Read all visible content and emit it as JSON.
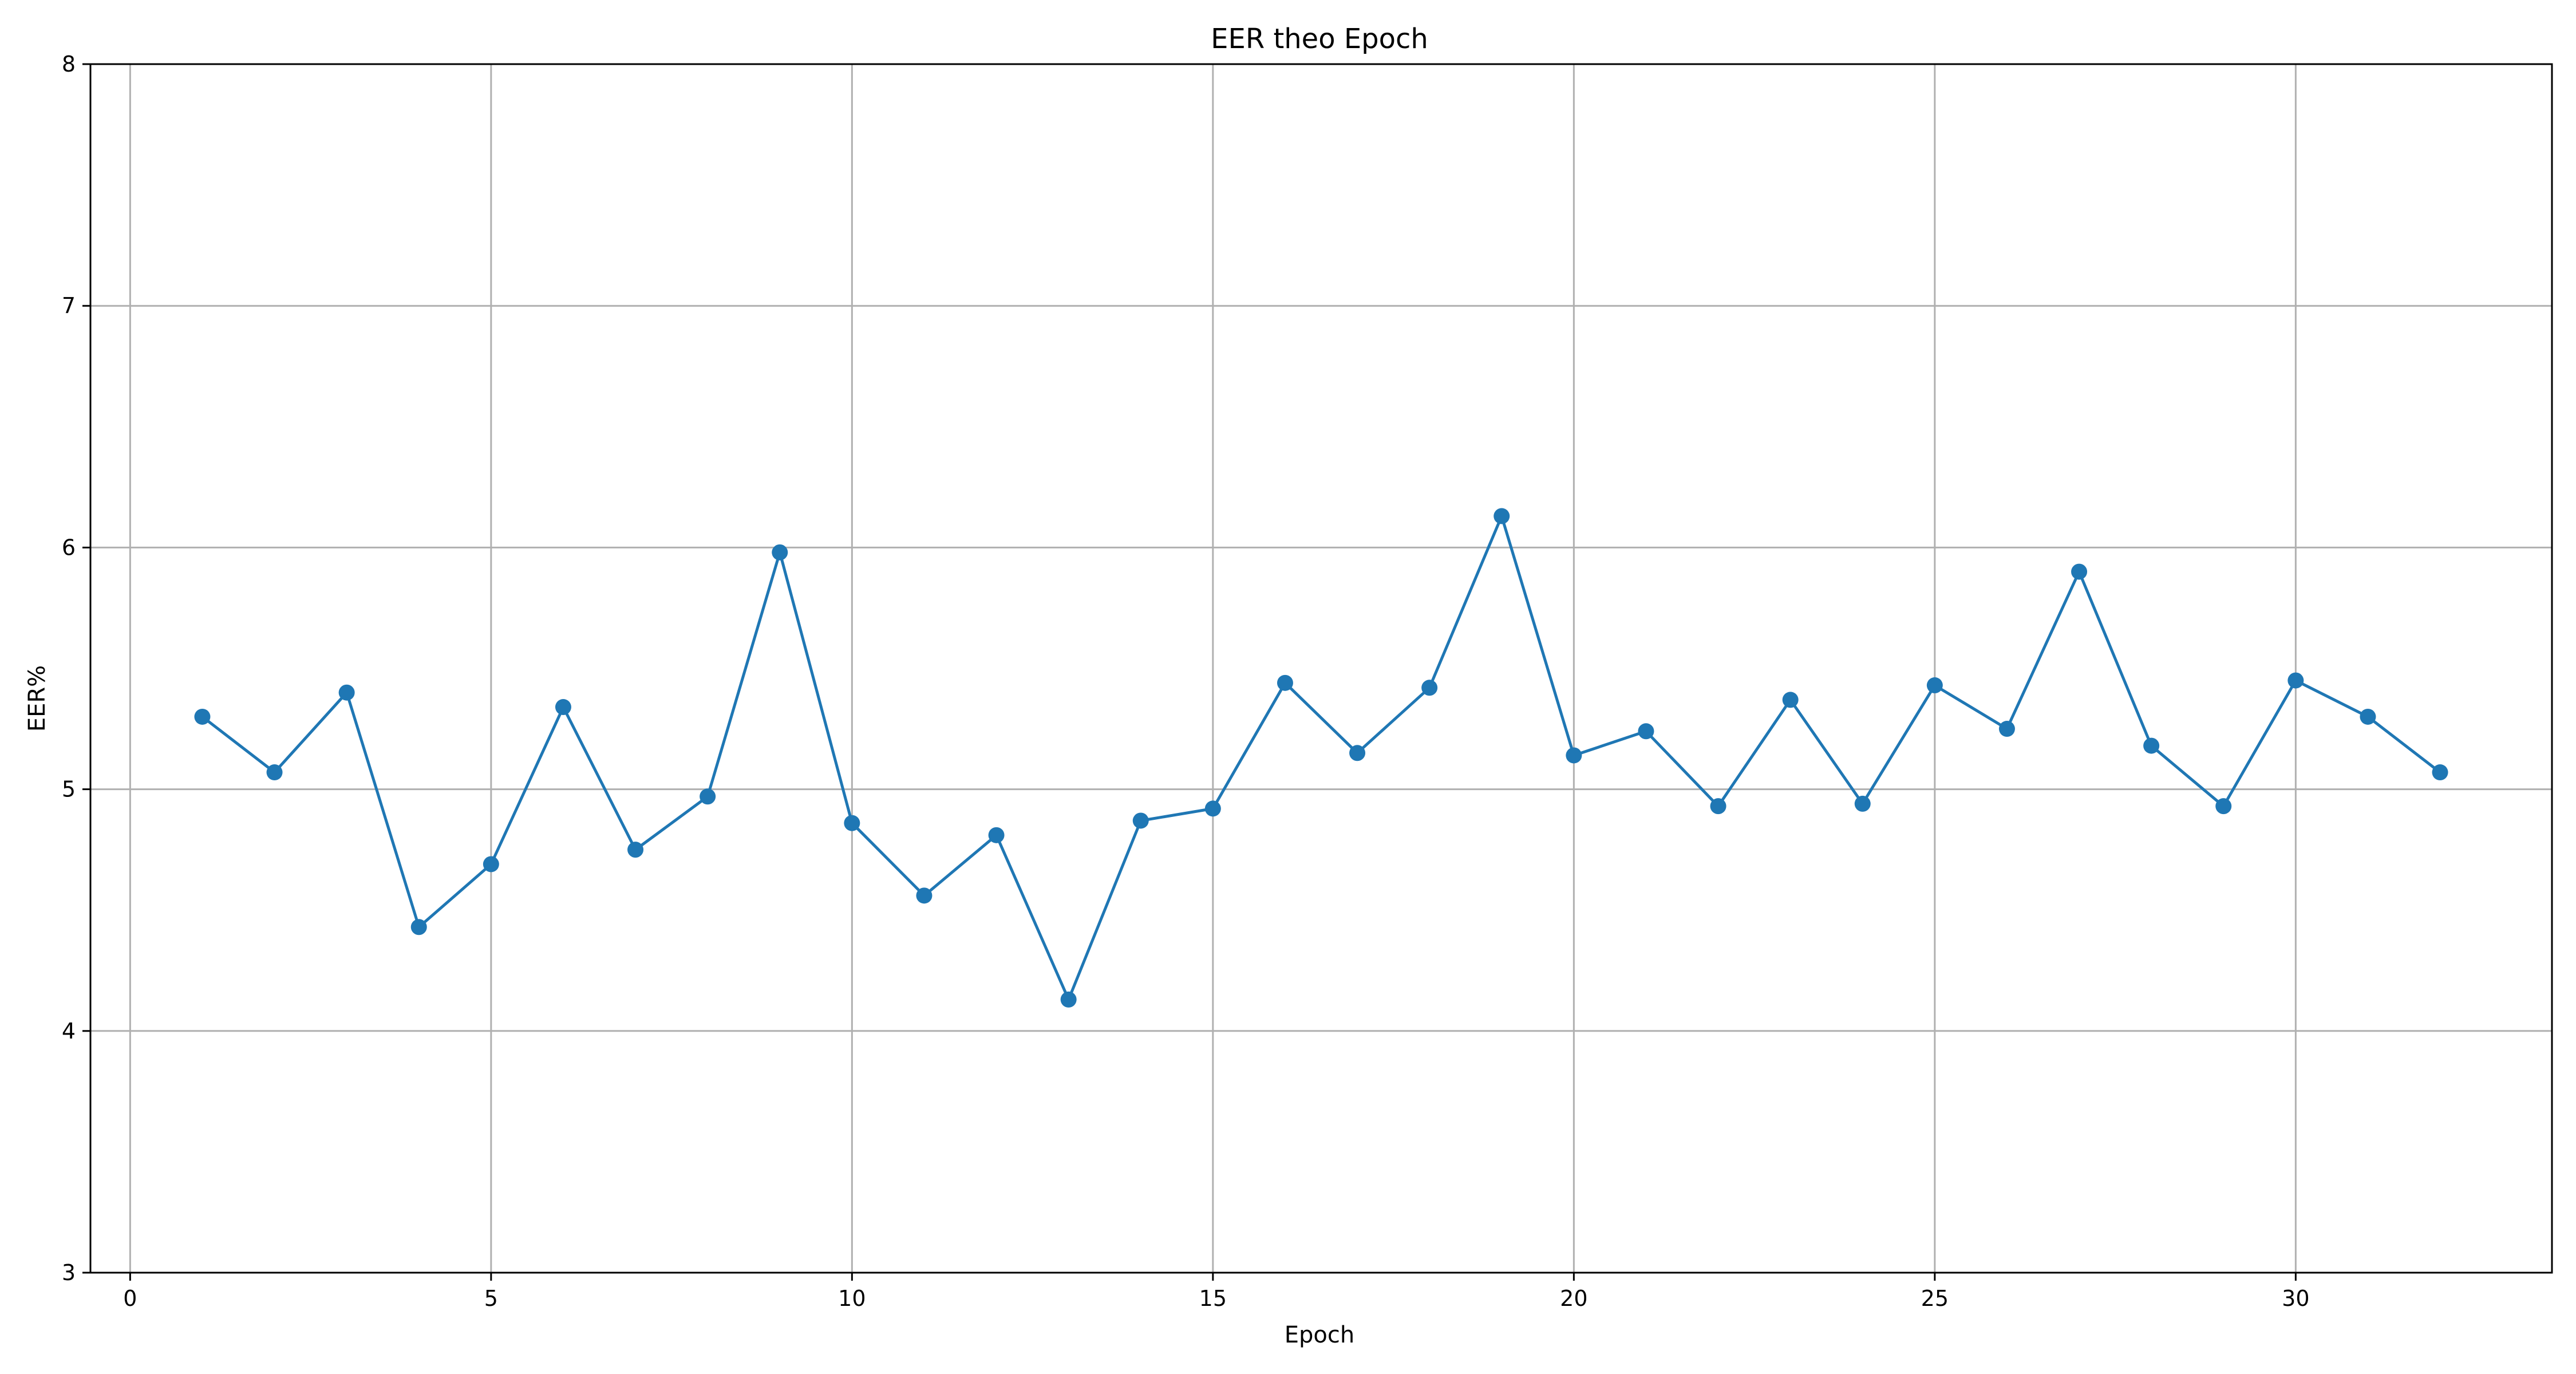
{
  "chart_data": {
    "type": "line",
    "title": "EER theo Epoch",
    "xlabel": "Epoch",
    "ylabel": "EER%",
    "xlim": [
      -0.55,
      33.55
    ],
    "ylim": [
      3,
      8
    ],
    "xticks": [
      0,
      5,
      10,
      15,
      20,
      25,
      30
    ],
    "yticks": [
      3,
      4,
      5,
      6,
      7,
      8
    ],
    "grid": true,
    "series": [
      {
        "color": "#1f77b4",
        "marker": "circle",
        "x": [
          1,
          2,
          3,
          4,
          5,
          6,
          7,
          8,
          9,
          10,
          11,
          12,
          13,
          14,
          15,
          16,
          17,
          18,
          19,
          20,
          21,
          22,
          23,
          24,
          25,
          26,
          27,
          28,
          29,
          30,
          31,
          32
        ],
        "values": [
          5.3,
          5.07,
          5.4,
          4.43,
          4.69,
          5.34,
          4.75,
          4.97,
          5.98,
          4.86,
          4.56,
          4.81,
          4.13,
          4.87,
          4.92,
          5.44,
          5.15,
          5.42,
          6.13,
          5.14,
          5.24,
          4.93,
          5.37,
          4.94,
          5.43,
          5.25,
          5.9,
          5.18,
          4.93,
          5.45,
          5.3,
          5.07
        ]
      }
    ]
  }
}
